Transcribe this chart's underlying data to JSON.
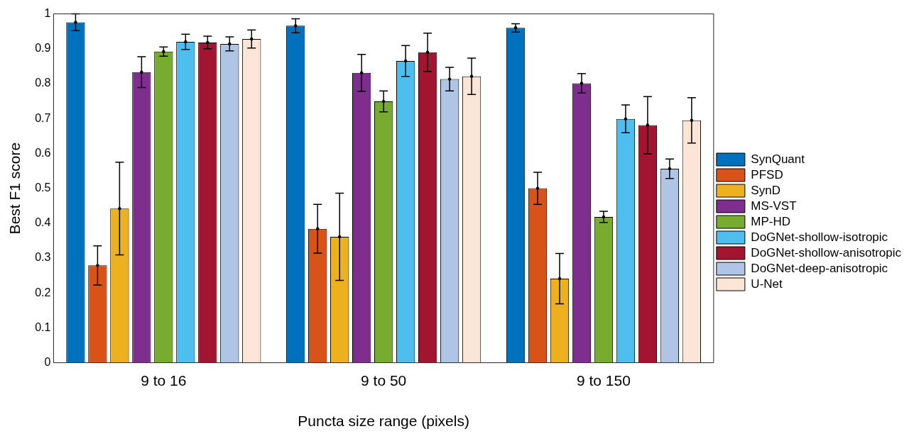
{
  "chart_data": {
    "type": "bar",
    "xlabel": "Puncta size range (pixels)",
    "ylabel": "Best F1 score",
    "categories": [
      "9 to 16",
      "9 to 50",
      "9 to 150"
    ],
    "ylim": [
      0,
      1
    ],
    "yticks": [
      0,
      0.1,
      0.2,
      0.3,
      0.4,
      0.5,
      0.6,
      0.7,
      0.8,
      0.9,
      1
    ],
    "grid": false,
    "legend": "right",
    "series": [
      {
        "name": "SynQuant",
        "color": "#0072bd",
        "values": [
          0.976,
          0.966,
          0.96
        ],
        "errors": [
          0.024,
          0.02,
          0.012
        ]
      },
      {
        "name": "PFSD",
        "color": "#d95319",
        "values": [
          0.279,
          0.384,
          0.5
        ],
        "errors": [
          0.056,
          0.07,
          0.046
        ]
      },
      {
        "name": "SynD",
        "color": "#edb120",
        "values": [
          0.442,
          0.361,
          0.241
        ],
        "errors": [
          0.133,
          0.125,
          0.072
        ]
      },
      {
        "name": "MS-VST",
        "color": "#7e2f8e",
        "values": [
          0.833,
          0.831,
          0.801
        ],
        "errors": [
          0.044,
          0.053,
          0.028
        ]
      },
      {
        "name": "MP-HD",
        "color": "#77ac30",
        "values": [
          0.892,
          0.749,
          0.418
        ],
        "errors": [
          0.013,
          0.03,
          0.016
        ]
      },
      {
        "name": "DoGNet-shollow-isotropic",
        "color": "#4dbeee",
        "values": [
          0.92,
          0.865,
          0.699
        ],
        "errors": [
          0.022,
          0.044,
          0.04
        ]
      },
      {
        "name": "DoGNet-shollow-anisotropic",
        "color": "#a2142f",
        "values": [
          0.918,
          0.89,
          0.681
        ],
        "errors": [
          0.018,
          0.055,
          0.082
        ]
      },
      {
        "name": "DoGNet-deep-anisotropic",
        "color": "#b0c4e6",
        "values": [
          0.914,
          0.813,
          0.556
        ],
        "errors": [
          0.02,
          0.034,
          0.028
        ]
      },
      {
        "name": "U-Net",
        "color": "#fbe5d6",
        "values": [
          0.928,
          0.821,
          0.695
        ],
        "errors": [
          0.026,
          0.052,
          0.065
        ]
      }
    ]
  }
}
